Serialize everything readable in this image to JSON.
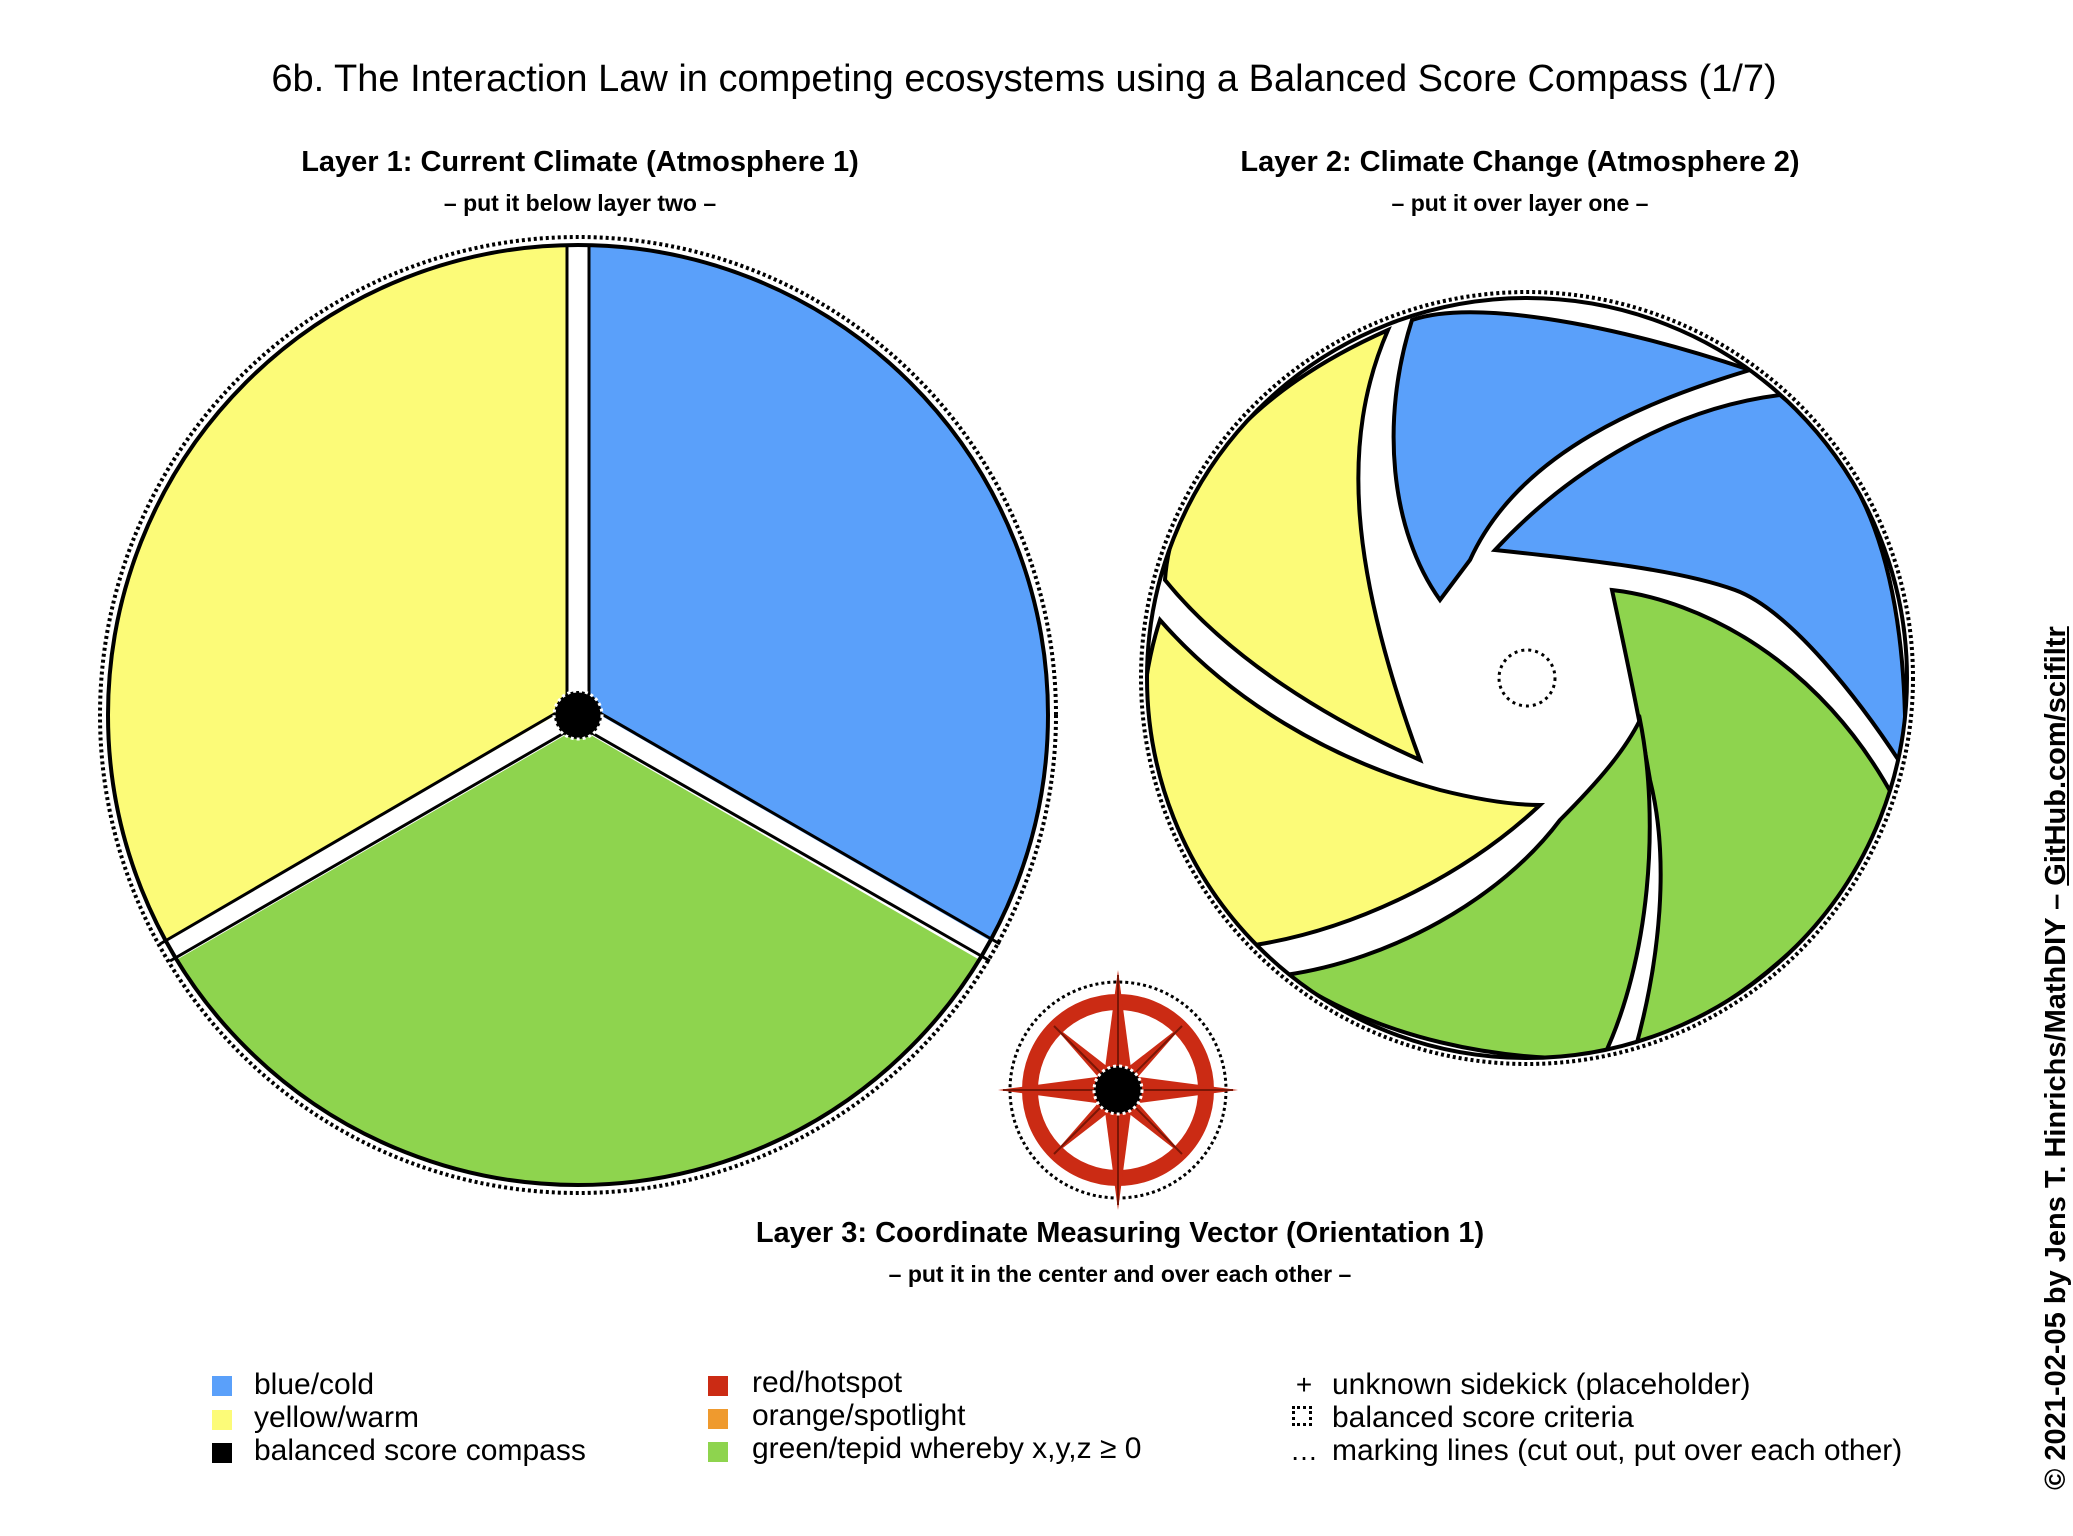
{
  "title": "6b. The Interaction Law in competing ecosystems using a Balanced Score Compass (1/7)",
  "layer1": {
    "title": "Layer 1: Current Climate (Atmosphere 1)",
    "subtitle": "– put it below layer two –"
  },
  "layer2": {
    "title": "Layer 2: Climate Change (Atmosphere 2)",
    "subtitle": "– put it over layer one –"
  },
  "layer3": {
    "title": "Layer 3: Coordinate Measuring Vector (Orientation 1)",
    "subtitle": "– put it in the center and over each other –"
  },
  "colors": {
    "blue": "#5aa0fa",
    "yellow": "#fcfb78",
    "green": "#8ed44e",
    "red": "#cb2b14",
    "orange": "#ef9a2e",
    "black": "#000000"
  },
  "legend": {
    "col1": [
      {
        "label": "blue/cold",
        "color": "#5aa0fa"
      },
      {
        "label": "yellow/warm",
        "color": "#fcfb78"
      },
      {
        "label": "balanced score compass",
        "color": "#000000"
      }
    ],
    "col2": [
      {
        "label": "red/hotspot",
        "color": "#cb2b14"
      },
      {
        "label": "orange/spotlight",
        "color": "#ef9a2e"
      },
      {
        "label": "green/tepid whereby x,y,z ≥ 0",
        "color": "#8ed44e"
      }
    ],
    "col3": [
      {
        "symbol": "+",
        "label": "unknown sidekick (placeholder)"
      },
      {
        "symbol": "dashed-square-icon",
        "label": "balanced score criteria"
      },
      {
        "symbol": "…",
        "label": "marking lines (cut out, put over each other)"
      }
    ]
  },
  "copyright": {
    "text": "© 2021-02-05 by Jens T. Hinrichs/MathDIY – ",
    "link": "GitHub.com/scifiltr"
  }
}
